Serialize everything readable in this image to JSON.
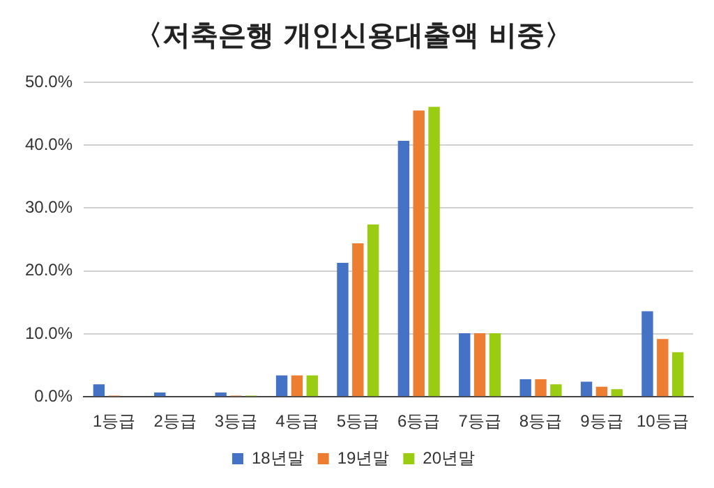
{
  "chart_data": {
    "type": "bar",
    "title": "〈저축은행 개인신용대출액 비중〉",
    "categories": [
      "1등급",
      "2등급",
      "3등급",
      "4등급",
      "5등급",
      "6등급",
      "7등급",
      "8등급",
      "9등급",
      "10등급"
    ],
    "series": [
      {
        "name": "18년말",
        "color": "#4472c4",
        "values": [
          2.0,
          0.7,
          0.7,
          3.4,
          21.3,
          40.7,
          10.1,
          2.8,
          2.4,
          13.6
        ]
      },
      {
        "name": "19년말",
        "color": "#ed7d31",
        "values": [
          0.2,
          0,
          0.2,
          3.4,
          24.4,
          45.5,
          10.1,
          2.8,
          1.6,
          9.2
        ]
      },
      {
        "name": "20년말",
        "color": "#9acd12",
        "values": [
          0,
          0,
          0.2,
          3.4,
          27.4,
          46.1,
          10.1,
          2.0,
          1.2,
          7.1
        ]
      }
    ],
    "ylim": [
      0,
      50
    ],
    "yticks": [
      {
        "value": 0,
        "label": "0.0%"
      },
      {
        "value": 10,
        "label": "10.0%"
      },
      {
        "value": 20,
        "label": "20.0%"
      },
      {
        "value": 30,
        "label": "30.0%"
      },
      {
        "value": 40,
        "label": "40.0%"
      },
      {
        "value": 50,
        "label": "50.0%"
      }
    ],
    "grid": "y",
    "legend": "bottom"
  }
}
